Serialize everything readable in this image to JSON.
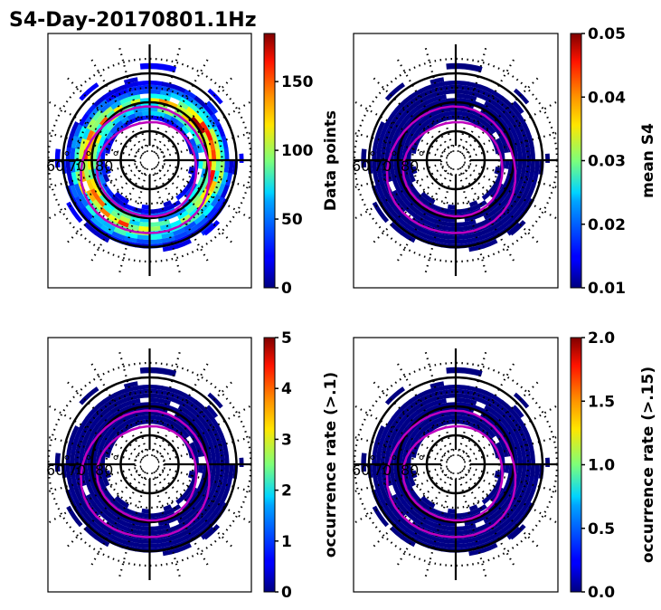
{
  "chart_data": {
    "type": "heatmap",
    "title": "S4-Day-20170801.1Hz",
    "projection": "polar (magnetic latitude / MLT)",
    "latitude_labels": [
      "60",
      "70",
      "80"
    ],
    "latitude_rings_solid": [
      60,
      70,
      80
    ],
    "latitude_rings_dotted": [
      55,
      65,
      75,
      85
    ],
    "oval_boundaries": [
      {
        "name": "poleward boundary",
        "color": "#bf00bf"
      },
      {
        "name": "equatorward boundary",
        "color": "#bf00bf"
      }
    ],
    "colormap": "jet",
    "panels": [
      {
        "id": "data-points",
        "colorbar_label": "Data points",
        "range": [
          0,
          185
        ],
        "ticks": [
          "0",
          "50",
          "100",
          "150"
        ],
        "tick_values": [
          0,
          50,
          100,
          150
        ],
        "description": "Ring of data counts between ~62 and ~75 deg latitude; peak values ~150-185 on dawn and dusk sides",
        "band_values_sample": [
          5,
          20,
          40,
          60,
          90,
          120,
          150,
          175
        ]
      },
      {
        "id": "mean-s4",
        "colorbar_label": "mean S4",
        "range": [
          0.01,
          0.05
        ],
        "ticks": [
          "0.01",
          "0.02",
          "0.03",
          "0.04",
          "0.05"
        ],
        "tick_values": [
          0.01,
          0.02,
          0.03,
          0.04,
          0.05
        ],
        "description": "Nearly all bins at minimum (~0.01)",
        "band_values_sample": [
          0.01
        ]
      },
      {
        "id": "occ-rate-01",
        "colorbar_label": "occurrence rate (>.1)",
        "range": [
          0,
          5
        ],
        "ticks": [
          "0",
          "1",
          "2",
          "3",
          "4",
          "5"
        ],
        "tick_values": [
          0,
          1,
          2,
          3,
          4,
          5
        ],
        "description": "All bins at ~0",
        "band_values_sample": [
          0
        ]
      },
      {
        "id": "occ-rate-015",
        "colorbar_label": "occurrence rate (>.15)",
        "range": [
          0,
          2
        ],
        "ticks": [
          "0.0",
          "0.5",
          "1.0",
          "1.5",
          "2.0"
        ],
        "tick_values": [
          0,
          0.5,
          1.0,
          1.5,
          2.0
        ],
        "description": "All bins at ~0",
        "band_values_sample": [
          0
        ]
      }
    ]
  }
}
